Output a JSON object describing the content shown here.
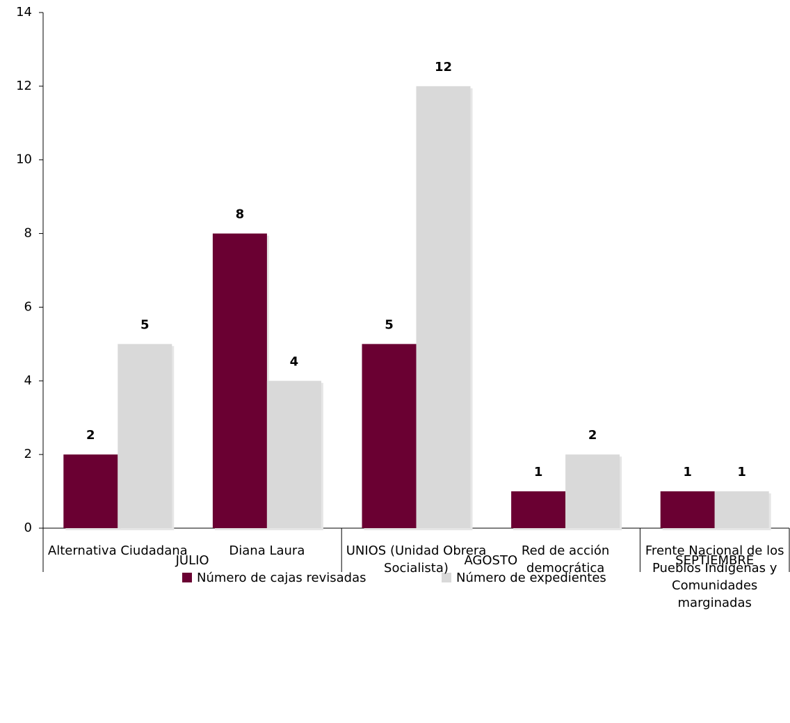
{
  "chart_data": {
    "type": "bar",
    "categories": [
      "Alternativa Ciudadana",
      "Diana Laura",
      "UNIOS (Unidad Obrera Socialista)",
      "Red de acción democrática",
      "Frente Nacional de los Pueblos Indígenas y Comunidades marginadas"
    ],
    "groups": [
      {
        "name": "JULIO",
        "count": 2
      },
      {
        "name": "AGOSTO",
        "count": 2
      },
      {
        "name": "SEPTIEMBRE",
        "count": 1
      }
    ],
    "series": [
      {
        "name": "Número de cajas revisadas",
        "color": "#6a0032",
        "values": [
          2,
          8,
          5,
          1,
          1
        ]
      },
      {
        "name": "Número de expedientes",
        "color": "#d9d9d9",
        "values": [
          5,
          4,
          12,
          2,
          1
        ]
      }
    ],
    "ylim": [
      0,
      14
    ],
    "yticks": [
      0,
      2,
      4,
      6,
      8,
      10,
      12,
      14
    ],
    "legend": "bottom"
  }
}
